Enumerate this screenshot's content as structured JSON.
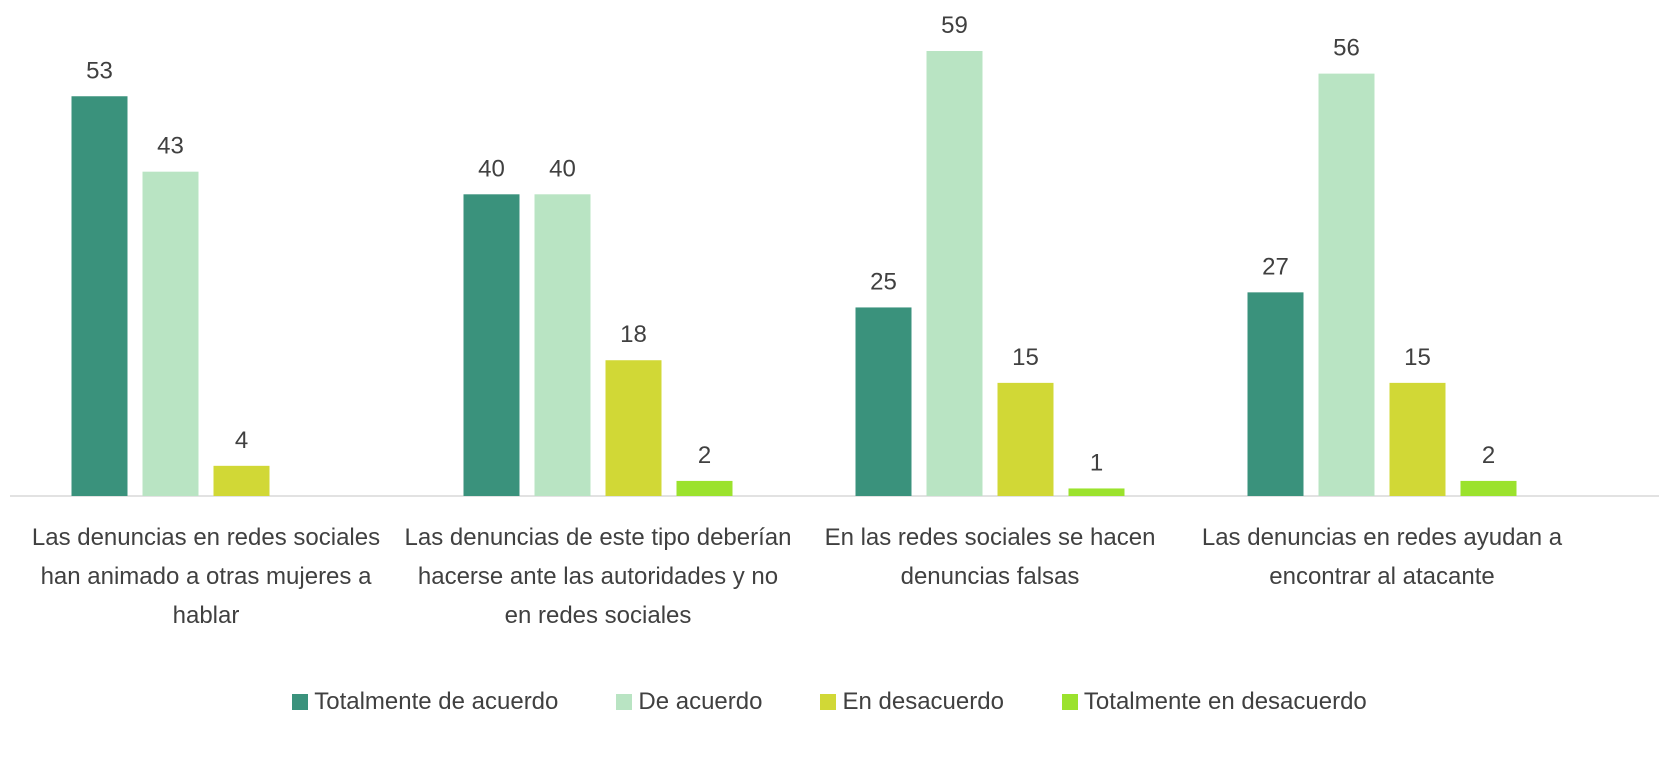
{
  "chart_data": {
    "type": "bar",
    "categories": [
      "Las denuncias en redes sociales han animado a otras mujeres a hablar",
      "Las denuncias de este tipo deberían hacerse ante las autoridades y no en redes sociales",
      "En las redes sociales se hacen denuncias falsas",
      "Las denuncias en redes ayudan a encontrar al atacante"
    ],
    "series": [
      {
        "name": "Totalmente de acuerdo",
        "color": "#3a927c",
        "values": [
          53,
          40,
          25,
          27
        ]
      },
      {
        "name": "De acuerdo",
        "color": "#b9e4c3",
        "values": [
          43,
          40,
          59,
          56
        ]
      },
      {
        "name": "En desacuerdo",
        "color": "#d1d836",
        "values": [
          4,
          18,
          15,
          15
        ]
      },
      {
        "name": "Totalmente en desacuerdo",
        "color": "#9be22d",
        "values": [
          null,
          2,
          1,
          2
        ]
      }
    ]
  }
}
